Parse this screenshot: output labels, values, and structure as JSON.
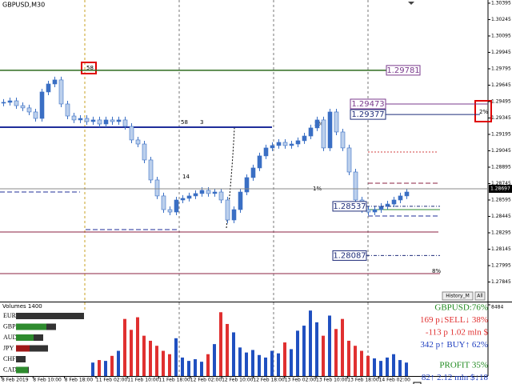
{
  "window": {
    "symbol": "GBPUSD,M30",
    "buttons": [
      "History_M",
      "All"
    ]
  },
  "chart_data": {
    "type": "candlestick",
    "up_color": "#3a6fc4",
    "down_color": "#bcd0ec",
    "closes": [
      1.29488,
      1.29502,
      1.29458,
      1.29437,
      1.294,
      1.29341,
      1.29583,
      1.29656,
      1.29693,
      1.29473,
      1.29363,
      1.29327,
      1.29341,
      1.29312,
      1.29327,
      1.2929,
      1.29327,
      1.29312,
      1.29327,
      1.29268,
      1.29144,
      1.29107,
      1.28961,
      1.28778,
      1.28632,
      1.28507,
      1.28485,
      1.28595,
      1.2861,
      1.28632,
      1.28654,
      1.28683,
      1.28654,
      1.28668,
      1.28595,
      1.28412,
      1.28507,
      1.28668,
      1.288,
      1.28888,
      1.28998,
      1.29071,
      1.29093,
      1.29122,
      1.29093,
      1.29107,
      1.29137,
      1.2918,
      1.29254,
      1.29327,
      1.29071,
      1.294,
      1.29217,
      1.29071,
      1.28851,
      1.28595,
      1.28507,
      1.28485,
      1.28507,
      1.28537,
      1.28558,
      1.28595,
      1.28632,
      1.28668
    ],
    "ylim": [
      1.27673,
      1.30424
    ],
    "yticks": [
      1.30395,
      1.30245,
      1.30095,
      1.29945,
      1.29795,
      1.29645,
      1.29495,
      1.29345,
      1.29195,
      1.29045,
      1.28895,
      1.28745,
      1.28595,
      1.28445,
      1.28295,
      1.28145,
      1.27995,
      1.27845
    ],
    "current_price": 1.28697,
    "levels": [
      {
        "value": 1.29781,
        "color": "#7a3a8c"
      },
      {
        "value": 1.29473,
        "color": "#7a3a8c"
      },
      {
        "value": 1.29377,
        "color": "#1f2d7a"
      },
      {
        "value": 1.28537,
        "color": "#1f2d7a"
      },
      {
        "value": 1.28087,
        "color": "#1f2d7a"
      }
    ],
    "annotations": [
      "58",
      "58",
      "3",
      "2%",
      "14",
      "1%",
      "8%",
      "2%"
    ],
    "time_labels": [
      "8 Feb 2019",
      "8 Feb 10:00",
      "8 Feb 18:00",
      "11 Feb 02:00",
      "11 Feb 10:00",
      "11 Feb 18:00",
      "12 Feb 02:00",
      "12 Feb 10:00",
      "12 Feb 18:00",
      "13 Feb 02:00",
      "13 Feb 10:00",
      "13 Feb 18:00",
      "14 Feb 02:00"
    ],
    "volume_title": "Volumes 1400",
    "volumes": [
      1500,
      1200,
      1800,
      1400,
      2200,
      1600,
      1300,
      1700,
      1500,
      2000,
      1800,
      1400,
      2100,
      2500,
      1600,
      1900,
      1800,
      2400,
      3000,
      6800,
      5500,
      7000,
      4800,
      4200,
      3600,
      3000,
      2600,
      4500,
      2200,
      1800,
      2000,
      1700,
      2600,
      3800,
      7600,
      6200,
      5200,
      3400,
      2800,
      3100,
      2500,
      2200,
      3000,
      2700,
      4000,
      3200,
      5400,
      6000,
      7800,
      6400,
      4800,
      7200,
      5600,
      6800,
      4200,
      3600,
      3000,
      2400,
      2100,
      1800,
      2200,
      2600,
      1900,
      1600
    ],
    "volume_ylim": [
      0,
      8484
    ],
    "volume_yticks": [
      8484
    ],
    "currencies": {
      "names": [
        "EUR",
        "GBP",
        "AUD",
        "JPY",
        "CHF",
        "CAD"
      ],
      "strength": [
        0,
        38,
        22,
        17,
        0,
        15
      ],
      "totals": [
        85,
        50,
        34,
        40,
        12,
        16
      ],
      "colors": [
        "#2e8b2e",
        "#2e8b2e",
        "#2e8b2e",
        "#a01818",
        "#2e8b2e",
        "#2e8b2e"
      ]
    },
    "info": [
      {
        "text": "GBPUSD:76%",
        "color": "#1f8a1f"
      },
      {
        "text": "169 p↓SELL↓ 38%",
        "color": "#e03030"
      },
      {
        "text": "-113 p   1.02 mln $",
        "color": "#e03030"
      },
      {
        "text": "342 p↑ BUY↑ 62%",
        "color": "#2040c0"
      },
      {
        "text": "PROFIT 35%",
        "color": "#1f8a1f"
      },
      {
        "text": "82↑   2.12 mln $↓18",
        "color": "#2040c0"
      }
    ]
  }
}
